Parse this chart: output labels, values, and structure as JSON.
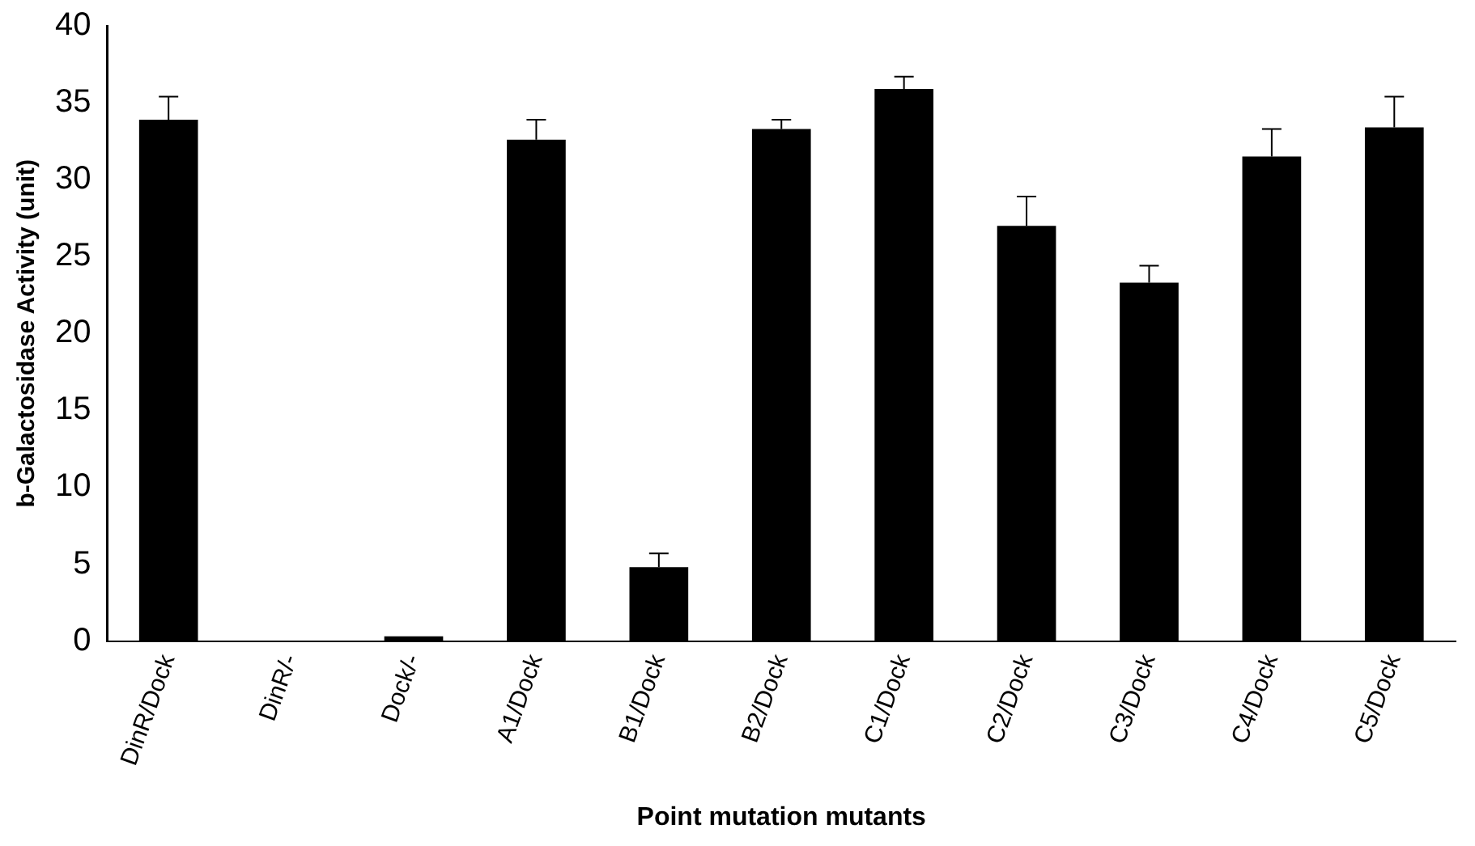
{
  "chart_data": {
    "type": "bar",
    "xlabel": "Point mutation mutants",
    "ylabel": "b-Galactosidase Activity (unit)",
    "categories": [
      "DinR/Dock",
      "DinR/-",
      "Dock/-",
      "A1/Dock",
      "B1/Dock",
      "B2/Dock",
      "C1/Dock",
      "C2/Dock",
      "C3/Dock",
      "C4/Dock",
      "C5/Dock"
    ],
    "values": [
      33.9,
      0,
      0.3,
      32.6,
      4.8,
      33.3,
      35.9,
      27.0,
      23.3,
      31.5,
      33.4
    ],
    "errors": [
      [
        33.9,
        35.4
      ],
      null,
      null,
      [
        32.6,
        33.9
      ],
      [
        4.8,
        5.7
      ],
      [
        33.3,
        33.9
      ],
      [
        35.9,
        36.7
      ],
      [
        27.0,
        28.9
      ],
      [
        23.3,
        24.4
      ],
      [
        31.5,
        33.3
      ],
      [
        33.4,
        35.4
      ]
    ],
    "color": "#000000",
    "ylim": [
      0,
      40
    ],
    "yticks": [
      0,
      5,
      10,
      15,
      20,
      25,
      30,
      35,
      40
    ],
    "grid": false,
    "legend": false
  }
}
